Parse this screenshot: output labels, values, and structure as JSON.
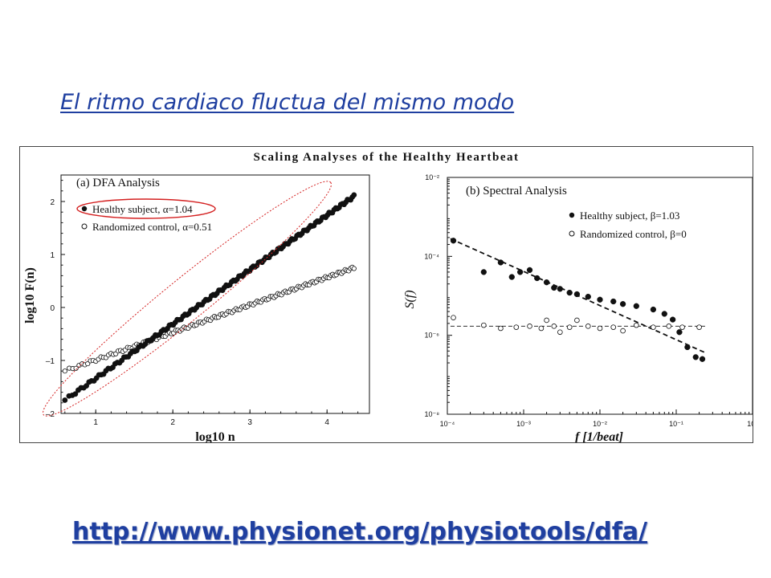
{
  "slide": {
    "title": "El ritmo cardiaco fluctua del mismo modo",
    "url": "http://www.physionet.org/physiotools/dfa/"
  },
  "figure": {
    "title": "Scaling Analyses of the Healthy Heartbeat"
  },
  "colors": {
    "accent": "#1f3fa0",
    "highlight_red": "#d42020",
    "ink": "#111111"
  },
  "chart_data": [
    {
      "type": "scatter",
      "title": "(a)  DFA Analysis",
      "xlabel": "log10 n",
      "ylabel": "log10 F(n)",
      "xlim": [
        0.55,
        4.55
      ],
      "ylim": [
        -2,
        2.5
      ],
      "xticks": [
        "1",
        "2",
        "3",
        "4"
      ],
      "yticks": [
        "–2",
        "–1",
        "0",
        "1",
        "2"
      ],
      "legend_position": "top-left",
      "series": [
        {
          "name": "Healthy subject, α=1.04",
          "marker": "filled-circle",
          "alpha": 1.04,
          "x_range": [
            0.6,
            4.35
          ],
          "y_at_start": -1.75,
          "y_at_end": 2.1
        },
        {
          "name": "Randomized control, α=0.51",
          "marker": "open-circle",
          "alpha": 0.51,
          "x_range": [
            0.6,
            4.35
          ],
          "y_at_start": -1.2,
          "y_at_end": 0.75
        }
      ]
    },
    {
      "type": "scatter",
      "title": "(b) Spectral Analysis",
      "xlabel": "f  [1/beat]",
      "ylabel": "S(f)",
      "xscale": "log",
      "yscale": "log",
      "xlim": [
        0.0001,
        1
      ],
      "ylim": [
        1e-08,
        0.01
      ],
      "xticks": [
        "10⁻⁴",
        "10⁻³",
        "10⁻²",
        "10⁻¹",
        "10⁰"
      ],
      "yticks": [
        "10⁻²",
        "10⁻⁴",
        "10⁻⁶",
        "10⁻⁸"
      ],
      "legend_position": "top-right",
      "series": [
        {
          "name": "Healthy subject, β=1.03",
          "marker": "filled-circle",
          "beta": 1.03,
          "points": [
            [
              0.00012,
              0.00025
            ],
            [
              0.0003,
              4e-05
            ],
            [
              0.0005,
              7e-05
            ],
            [
              0.0007,
              3e-05
            ],
            [
              0.0009,
              4e-05
            ],
            [
              0.0012,
              4.5e-05
            ],
            [
              0.0015,
              2.8e-05
            ],
            [
              0.002,
              2.2e-05
            ],
            [
              0.0025,
              1.6e-05
            ],
            [
              0.003,
              1.5e-05
            ],
            [
              0.004,
              1.2e-05
            ],
            [
              0.005,
              1.1e-05
            ],
            [
              0.007,
              9.5e-06
            ],
            [
              0.01,
              8e-06
            ],
            [
              0.015,
              7.2e-06
            ],
            [
              0.02,
              6.2e-06
            ],
            [
              0.03,
              5.5e-06
            ],
            [
              0.05,
              4.5e-06
            ],
            [
              0.07,
              3.5e-06
            ],
            [
              0.09,
              2.5e-06
            ],
            [
              0.11,
              1.2e-06
            ],
            [
              0.14,
              5e-07
            ],
            [
              0.18,
              2.8e-07
            ],
            [
              0.22,
              2.5e-07
            ]
          ]
        },
        {
          "name": "Randomized control, β=0",
          "marker": "open-circle",
          "beta": 0,
          "points": [
            [
              0.00012,
              2.8e-06
            ],
            [
              0.0003,
              1.8e-06
            ],
            [
              0.0005,
              1.5e-06
            ],
            [
              0.0008,
              1.6e-06
            ],
            [
              0.0012,
              1.7e-06
            ],
            [
              0.0017,
              1.5e-06
            ],
            [
              0.002,
              2.4e-06
            ],
            [
              0.0025,
              1.7e-06
            ],
            [
              0.003,
              1.2e-06
            ],
            [
              0.004,
              1.6e-06
            ],
            [
              0.005,
              2.4e-06
            ],
            [
              0.007,
              1.7e-06
            ],
            [
              0.01,
              1.5e-06
            ],
            [
              0.015,
              1.6e-06
            ],
            [
              0.02,
              1.3e-06
            ],
            [
              0.03,
              1.8e-06
            ],
            [
              0.05,
              1.6e-06
            ],
            [
              0.08,
              1.7e-06
            ],
            [
              0.12,
              1.6e-06
            ],
            [
              0.2,
              1.6e-06
            ]
          ]
        }
      ]
    }
  ]
}
